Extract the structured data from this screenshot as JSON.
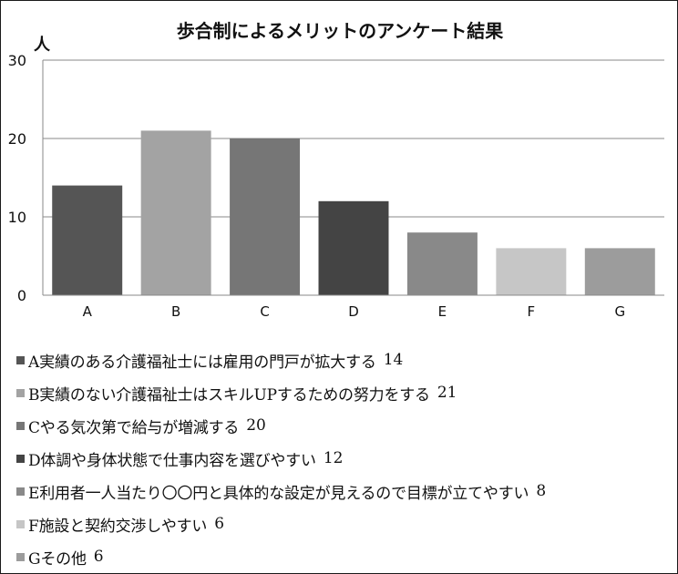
{
  "chart_data": {
    "type": "bar",
    "title": "歩合制によるメリットのアンケート結果",
    "ylabel": "人",
    "xlabel": "",
    "ylim": [
      0,
      30
    ],
    "yticks": [
      0,
      10,
      20,
      30
    ],
    "grid": true,
    "legend_placement": "bottom",
    "categories": [
      "A",
      "B",
      "C",
      "D",
      "E",
      "F",
      "G"
    ],
    "values": [
      14,
      21,
      20,
      12,
      8,
      6,
      6
    ],
    "colors": [
      "#555555",
      "#a3a3a3",
      "#767676",
      "#444444",
      "#898989",
      "#c6c6c6",
      "#9c9c9c"
    ],
    "legend": [
      {
        "label": "A実績のある介護福祉士には雇用の門戸が拡大する",
        "value": "14"
      },
      {
        "label": "B実績のない介護福祉士はスキルUPするための努力をする",
        "value": "21"
      },
      {
        "label": "Cやる気次第で給与が増減する",
        "value": "20"
      },
      {
        "label": "D体調や身体状態で仕事内容を選びやすい",
        "value": "12"
      },
      {
        "label": "E利用者一人当たり〇〇円と具体的な設定が見えるので目標が立てやすい",
        "value": "8"
      },
      {
        "label": "F施設と契約交渉しやすい",
        "value": "6"
      },
      {
        "label": "Gその他",
        "value": "6"
      }
    ]
  }
}
